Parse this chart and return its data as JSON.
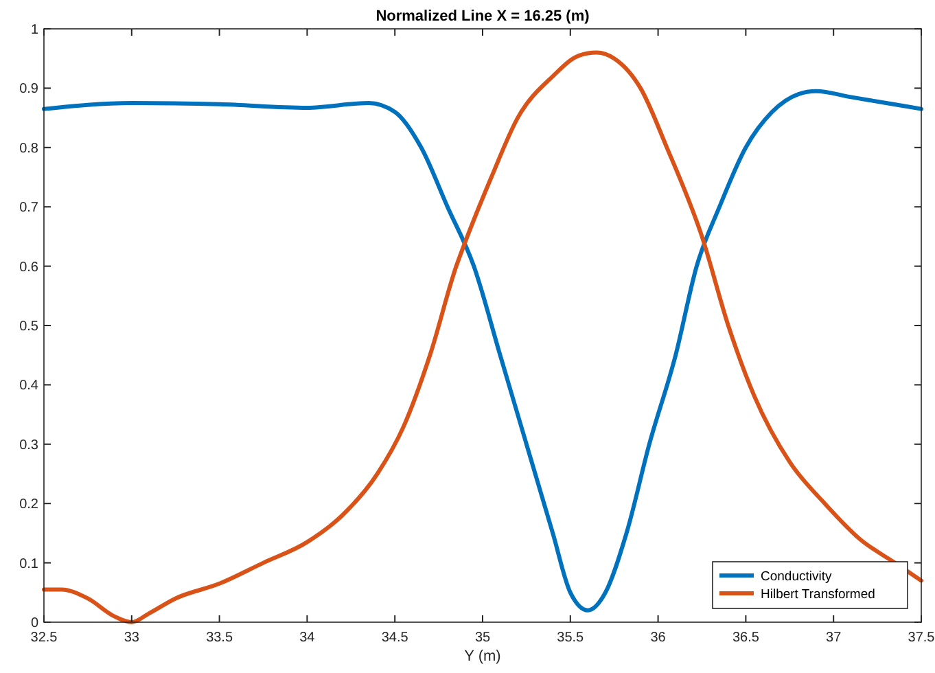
{
  "chart_data": {
    "type": "line",
    "title": "Normalized Line X = 16.25 (m)",
    "xlabel": "Y (m)",
    "xlim": [
      32.5,
      37.5
    ],
    "xticks": [
      32.5,
      33,
      33.5,
      34,
      34.5,
      35,
      35.5,
      36,
      36.5,
      37,
      37.5
    ],
    "ylim": [
      0,
      1
    ],
    "yticks": [
      0,
      0.1,
      0.2,
      0.3,
      0.4,
      0.5,
      0.6,
      0.7,
      0.8,
      0.9,
      1
    ],
    "grid": false,
    "legend": "bottom right",
    "line_style": "solid",
    "marker": "none",
    "series": [
      {
        "name": "Conductivity",
        "color": "#0072bd",
        "x": [
          32.5,
          33,
          33.5,
          34,
          34.35,
          34.5,
          34.65,
          34.8,
          34.95,
          35.1,
          35.25,
          35.4,
          35.5,
          35.6,
          35.7,
          35.82,
          35.95,
          36.1,
          36.22,
          36.35,
          36.5,
          36.65,
          36.8,
          36.9,
          37.1,
          37.3,
          37.5
        ],
        "values": [
          0.865,
          0.875,
          0.873,
          0.867,
          0.875,
          0.86,
          0.8,
          0.7,
          0.6,
          0.45,
          0.3,
          0.15,
          0.05,
          0.02,
          0.05,
          0.15,
          0.3,
          0.45,
          0.6,
          0.7,
          0.8,
          0.86,
          0.89,
          0.895,
          0.885,
          0.875,
          0.865
        ]
      },
      {
        "name": "Hilbert Transformed",
        "color": "#d95319",
        "x": [
          32.5,
          32.6,
          32.75,
          32.9,
          33,
          33.1,
          33.25,
          33.5,
          33.75,
          34,
          34.2,
          34.4,
          34.55,
          34.7,
          34.85,
          34.9,
          35.05,
          35.2,
          35.4,
          35.55,
          35.65,
          35.75,
          35.9,
          36.05,
          36.25,
          36.4,
          36.55,
          36.75,
          36.95,
          37.15,
          37.35,
          37.5
        ],
        "values": [
          0.055,
          0.055,
          0.04,
          0.01,
          0,
          0.015,
          0.04,
          0.065,
          0.1,
          0.135,
          0.18,
          0.25,
          0.33,
          0.45,
          0.6,
          0.64,
          0.75,
          0.85,
          0.92,
          0.955,
          0.96,
          0.95,
          0.9,
          0.8,
          0.65,
          0.5,
          0.38,
          0.27,
          0.2,
          0.14,
          0.1,
          0.07
        ]
      }
    ]
  }
}
